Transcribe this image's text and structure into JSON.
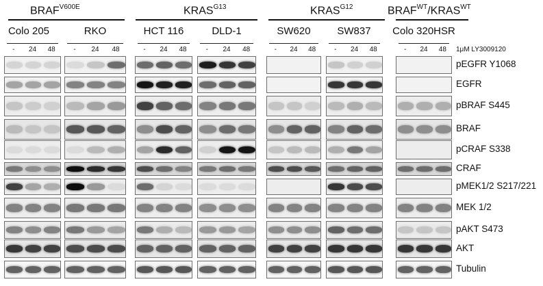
{
  "groups": [
    {
      "base": "BRAF",
      "sup": "V600E"
    },
    {
      "base": "KRAS",
      "sup": "G13"
    },
    {
      "base": "KRAS",
      "sup": "G12"
    },
    {
      "base": "BRAF",
      "sup": "WT",
      "sep": "/KRAS",
      "sup2": "WT"
    }
  ],
  "cell_lines": [
    "Colo 205",
    "RKO",
    "HCT 116",
    "DLD-1",
    "SW620",
    "SW837",
    "Colo 320HSR"
  ],
  "timepoints": [
    "-",
    "24",
    "48"
  ],
  "treatment": "1μM LY3009120",
  "proteins": [
    "pEGFR Y1068",
    "EGFR",
    "pBRAF S445",
    "BRAF",
    "pCRAF S338",
    "CRAF",
    "pMEK1/2 S217/221",
    "MEK 1/2",
    "pAKT S473",
    "AKT",
    "Tubulin"
  ],
  "band_intensity": [
    [
      [
        0.08,
        0.08,
        0.08
      ],
      [
        0.05,
        0.15,
        0.55
      ],
      [
        0.55,
        0.6,
        0.55
      ],
      [
        0.92,
        0.8,
        0.75
      ],
      [
        0,
        0,
        0
      ],
      [
        0.15,
        0.1,
        0.1
      ],
      [
        0,
        0,
        0
      ]
    ],
    [
      [
        0.3,
        0.3,
        0.3
      ],
      [
        0.45,
        0.45,
        0.45
      ],
      [
        0.95,
        0.9,
        0.9
      ],
      [
        0.55,
        0.6,
        0.6
      ],
      [
        0,
        0,
        0
      ],
      [
        0.8,
        0.8,
        0.8
      ],
      [
        0,
        0,
        0
      ]
    ],
    [
      [
        0.15,
        0.12,
        0.1
      ],
      [
        0.2,
        0.3,
        0.35
      ],
      [
        0.75,
        0.6,
        0.55
      ],
      [
        0.45,
        0.5,
        0.5
      ],
      [
        0.15,
        0.15,
        0.1
      ],
      [
        0.2,
        0.25,
        0.2
      ],
      [
        0.25,
        0.25,
        0.25
      ]
    ],
    [
      [
        0.2,
        0.15,
        0.15
      ],
      [
        0.65,
        0.65,
        0.6
      ],
      [
        0.4,
        0.7,
        0.6
      ],
      [
        0.4,
        0.55,
        0.5
      ],
      [
        0.4,
        0.6,
        0.6
      ],
      [
        0.45,
        0.6,
        0.55
      ],
      [
        0.4,
        0.4,
        0.4
      ]
    ],
    [
      [
        0.05,
        0.05,
        0.05
      ],
      [
        0.05,
        0.2,
        0.25
      ],
      [
        0.3,
        0.85,
        0.6
      ],
      [
        0.1,
        0.95,
        0.95
      ],
      [
        0.15,
        0.2,
        0.2
      ],
      [
        0.25,
        0.5,
        0.3
      ],
      [
        0,
        0,
        0
      ]
    ],
    [
      [
        0.5,
        0.4,
        0.4
      ],
      [
        0.98,
        0.85,
        0.8
      ],
      [
        0.7,
        0.55,
        0.45
      ],
      [
        0.5,
        0.55,
        0.5
      ],
      [
        0.7,
        0.7,
        0.65
      ],
      [
        0.55,
        0.6,
        0.6
      ],
      [
        0.55,
        0.55,
        0.55
      ]
    ],
    [
      [
        0.75,
        0.3,
        0.25
      ],
      [
        0.98,
        0.35,
        0.05
      ],
      [
        0.55,
        0.08,
        0.05
      ],
      [
        0.05,
        0.05,
        0.05
      ],
      [
        0,
        0,
        0
      ],
      [
        0.8,
        0.7,
        0.7
      ],
      [
        0,
        0,
        0
      ]
    ],
    [
      [
        0.45,
        0.45,
        0.45
      ],
      [
        0.5,
        0.5,
        0.5
      ],
      [
        0.45,
        0.45,
        0.45
      ],
      [
        0.4,
        0.4,
        0.4
      ],
      [
        0.45,
        0.45,
        0.45
      ],
      [
        0.45,
        0.45,
        0.45
      ],
      [
        0.45,
        0.45,
        0.45
      ]
    ],
    [
      [
        0.45,
        0.4,
        0.45
      ],
      [
        0.5,
        0.35,
        0.3
      ],
      [
        0.5,
        0.25,
        0.2
      ],
      [
        0.35,
        0.35,
        0.3
      ],
      [
        0.4,
        0.4,
        0.4
      ],
      [
        0.6,
        0.55,
        0.55
      ],
      [
        0.15,
        0.15,
        0.15
      ]
    ],
    [
      [
        0.8,
        0.75,
        0.75
      ],
      [
        0.7,
        0.7,
        0.7
      ],
      [
        0.6,
        0.6,
        0.6
      ],
      [
        0.6,
        0.6,
        0.6
      ],
      [
        0.75,
        0.75,
        0.75
      ],
      [
        0.8,
        0.8,
        0.8
      ],
      [
        0.8,
        0.8,
        0.8
      ]
    ],
    [
      [
        0.6,
        0.6,
        0.6
      ],
      [
        0.6,
        0.6,
        0.6
      ],
      [
        0.65,
        0.65,
        0.65
      ],
      [
        0.6,
        0.6,
        0.6
      ],
      [
        0.6,
        0.6,
        0.6
      ],
      [
        0.65,
        0.65,
        0.65
      ],
      [
        0.6,
        0.6,
        0.6
      ]
    ]
  ],
  "row_background": [
    0.95,
    0.95,
    0.93,
    0.9,
    0.93,
    0.85,
    0.93,
    0.93,
    0.92,
    0.9,
    0.96
  ],
  "colors": {
    "text": "#111111",
    "blot_border": "#6d6d6d"
  }
}
